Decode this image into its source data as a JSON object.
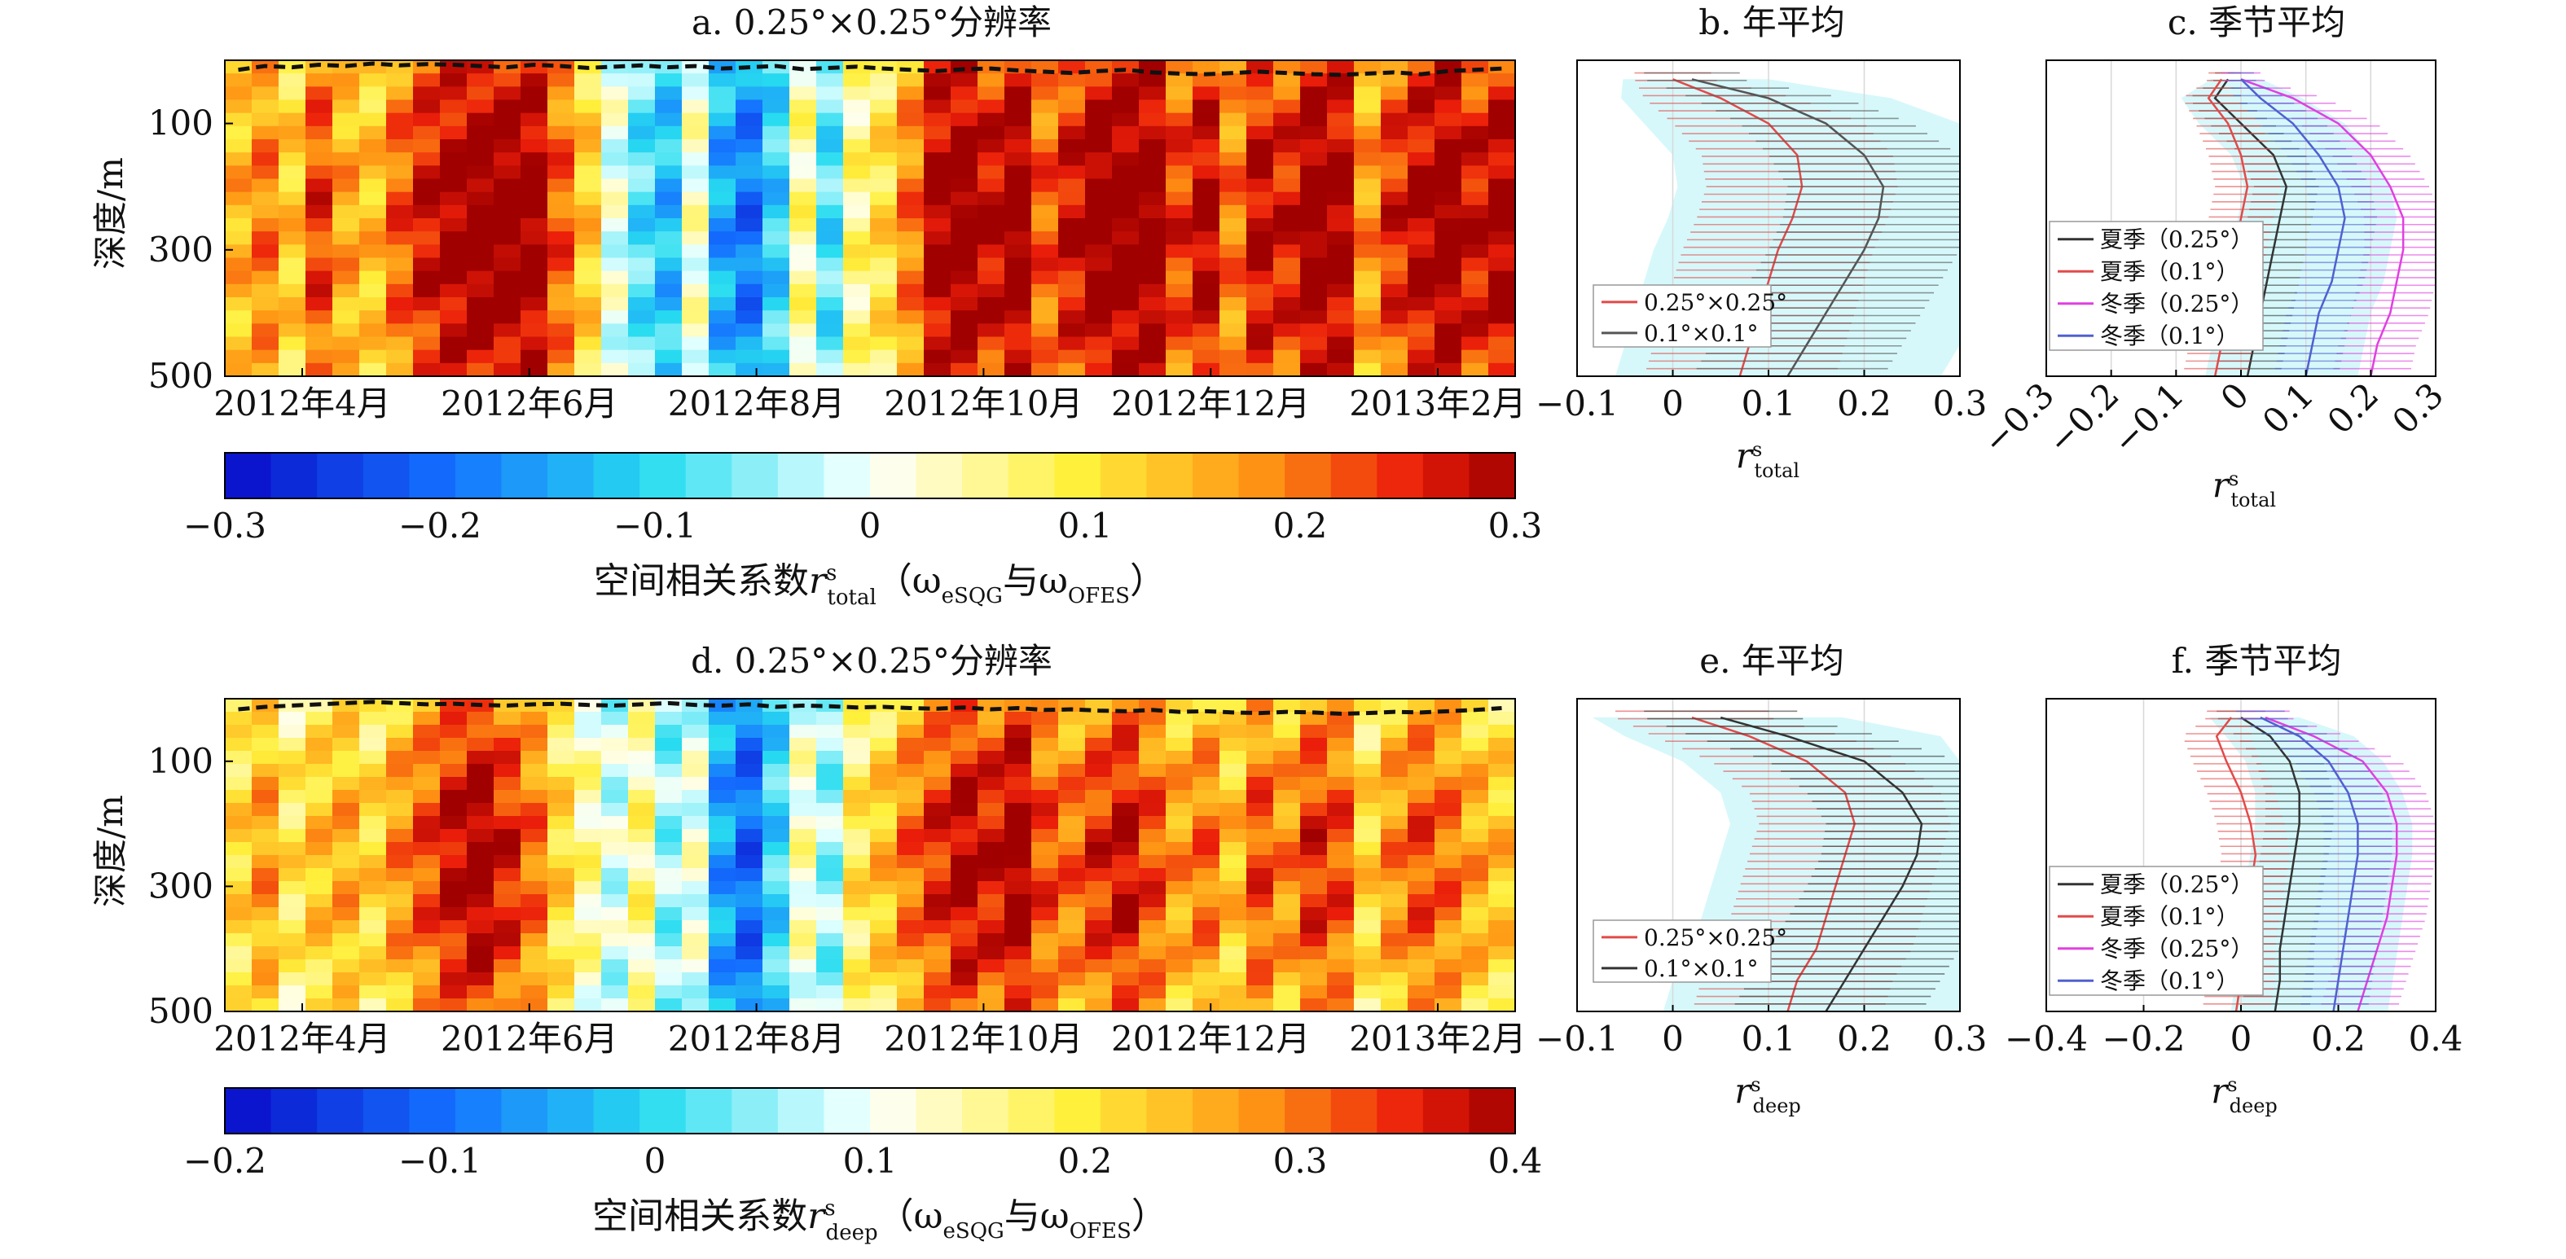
{
  "figure": {
    "top": {
      "heatmap_title": "a. 0.25°×0.25°分辨率",
      "annual_title": "b. 年平均",
      "seasonal_title": "c. 季节平均",
      "ylabel": "深度/m",
      "colorbar_label_prefix": "空间相关系数",
      "colorbar_label_var": "r",
      "colorbar_label_sup": "s",
      "colorbar_label_sub": "total",
      "colorbar_label_paren": "（ω",
      "colorbar_label_esqg": "eSQG",
      "colorbar_label_and": "与ω",
      "colorbar_label_ofes": "OFES",
      "colorbar_label_close": "）",
      "xlabel_var": "r",
      "xlabel_sup": "s",
      "xlabel_sub": "total"
    },
    "bottom": {
      "heatmap_title": "d. 0.25°×0.25°分辨率",
      "annual_title": "e. 年平均",
      "seasonal_title": "f. 季节平均",
      "ylabel": "深度/m",
      "colorbar_label_prefix": "空间相关系数",
      "colorbar_label_var": "r",
      "colorbar_label_sup": "s",
      "colorbar_label_sub": "deep",
      "colorbar_label_paren": "（ω",
      "colorbar_label_esqg": "eSQG",
      "colorbar_label_and": "与ω",
      "colorbar_label_ofes": "OFES",
      "colorbar_label_close": "）",
      "xlabel_var": "r",
      "xlabel_sup": "s",
      "xlabel_sub": "deep"
    }
  },
  "chart_data": [
    {
      "id": "a",
      "type": "heatmap",
      "title": "a. 0.25°×0.25°分辨率",
      "ylabel": "深度/m",
      "x_ticks": [
        "2012年4月",
        "2012年6月",
        "2012年8月",
        "2012年10月",
        "2012年12月",
        "2013年2月"
      ],
      "y_ticks": [
        "100",
        "300",
        "500"
      ],
      "y_tick_depths": [
        100,
        300,
        500
      ],
      "ylim": [
        500,
        0
      ],
      "colorbar": {
        "min": -0.3,
        "max": 0.3,
        "ticks": [
          "-0.3",
          "-0.2",
          "-0.1",
          "0",
          "0.1",
          "0.2",
          "0.3"
        ],
        "tick_values": [
          -0.3,
          -0.2,
          -0.1,
          0,
          0.1,
          0.2,
          0.3
        ]
      },
      "column_values": [
        0.14,
        0.18,
        0.12,
        0.22,
        0.15,
        0.13,
        0.2,
        0.25,
        0.28,
        0.3,
        0.3,
        0.29,
        0.2,
        0.12,
        0.0,
        -0.08,
        -0.12,
        0.02,
        -0.14,
        -0.18,
        -0.1,
        0.05,
        -0.08,
        0.06,
        0.1,
        0.18,
        0.28,
        0.3,
        0.26,
        0.3,
        0.2,
        0.25,
        0.3,
        0.3,
        0.3,
        0.22,
        0.27,
        0.18,
        0.26,
        0.24,
        0.3,
        0.28,
        0.16,
        0.23,
        0.27,
        0.3,
        0.25,
        0.28
      ],
      "mixed_layer_depth": [
        28,
        22,
        24,
        20,
        22,
        18,
        21,
        19,
        20,
        22,
        24,
        20,
        22,
        25,
        23,
        21,
        24,
        22,
        26,
        24,
        22,
        27,
        25,
        23,
        26,
        28,
        30,
        27,
        26,
        29,
        31,
        33,
        30,
        28,
        32,
        34,
        35,
        33,
        31,
        33,
        35,
        36,
        34,
        32,
        35,
        30,
        28,
        26
      ]
    },
    {
      "id": "b",
      "type": "line",
      "title": "b. 年平均",
      "xlim": [
        -0.1,
        0.3
      ],
      "x_ticks": [
        "−0.1",
        "0",
        "0.1",
        "0.2",
        "0.3"
      ],
      "x_tick_values": [
        -0.1,
        0,
        0.1,
        0.2,
        0.3
      ],
      "ylim": [
        500,
        0
      ],
      "depths": [
        30,
        60,
        100,
        150,
        200,
        250,
        300,
        350,
        400,
        450,
        500
      ],
      "series": [
        {
          "name": "0.25°×0.25°",
          "color": "#e24a4a",
          "values": [
            0.0,
            0.05,
            0.1,
            0.13,
            0.135,
            0.125,
            0.11,
            0.1,
            0.09,
            0.08,
            0.07
          ],
          "spread": [
            0.04,
            0.08,
            0.1,
            0.1,
            0.1,
            0.1,
            0.1,
            0.1,
            0.1,
            0.1,
            0.1
          ]
        },
        {
          "name": "0.1°×0.1°",
          "color": "#555555",
          "values": [
            0.02,
            0.1,
            0.16,
            0.2,
            0.22,
            0.215,
            0.2,
            0.18,
            0.16,
            0.14,
            0.12
          ],
          "spread": [
            0.05,
            0.08,
            0.09,
            0.1,
            0.1,
            0.1,
            0.1,
            0.1,
            0.1,
            0.1,
            0.1
          ]
        }
      ]
    },
    {
      "id": "c",
      "type": "line",
      "title": "c. 季节平均",
      "xlim": [
        -0.3,
        0.3
      ],
      "x_ticks": [
        "−0.3",
        "−0.2",
        "−0.1",
        "0",
        "0.1",
        "0.2",
        "0.3"
      ],
      "x_tick_values": [
        -0.3,
        -0.2,
        -0.1,
        0,
        0.1,
        0.2,
        0.3
      ],
      "ylim": [
        500,
        0
      ],
      "depths": [
        30,
        60,
        100,
        150,
        200,
        250,
        300,
        350,
        400,
        450,
        500
      ],
      "series": [
        {
          "name": "夏季（0.25°）",
          "color": "#333333",
          "values": [
            -0.02,
            -0.04,
            0.0,
            0.05,
            0.07,
            0.06,
            0.05,
            0.04,
            0.03,
            0.02,
            0.01
          ],
          "spread": [
            0.02,
            0.04,
            0.05,
            0.05,
            0.05,
            0.05,
            0.05,
            0.05,
            0.05,
            0.05,
            0.05
          ]
        },
        {
          "name": "夏季（0.1°）",
          "color": "#e24a4a",
          "values": [
            -0.03,
            -0.05,
            -0.02,
            0.0,
            0.01,
            0.0,
            -0.01,
            -0.02,
            -0.03,
            -0.03,
            -0.04
          ],
          "spread": [
            0.02,
            0.04,
            0.05,
            0.05,
            0.05,
            0.05,
            0.05,
            0.05,
            0.05,
            0.05,
            0.05
          ]
        },
        {
          "name": "冬季（0.25°）",
          "color": "#e040e0",
          "values": [
            0.0,
            0.08,
            0.15,
            0.2,
            0.23,
            0.25,
            0.25,
            0.24,
            0.23,
            0.21,
            0.2
          ],
          "spread": [
            0.03,
            0.05,
            0.06,
            0.06,
            0.06,
            0.06,
            0.06,
            0.06,
            0.06,
            0.06,
            0.06
          ]
        },
        {
          "name": "冬季（0.1°）",
          "color": "#5060d0",
          "values": [
            0.0,
            0.03,
            0.08,
            0.12,
            0.15,
            0.16,
            0.15,
            0.14,
            0.12,
            0.11,
            0.1
          ],
          "spread": [
            0.02,
            0.04,
            0.05,
            0.05,
            0.05,
            0.05,
            0.05,
            0.05,
            0.05,
            0.05,
            0.05
          ]
        }
      ]
    },
    {
      "id": "d",
      "type": "heatmap",
      "title": "d. 0.25°×0.25°分辨率",
      "ylabel": "深度/m",
      "x_ticks": [
        "2012年4月",
        "2012年6月",
        "2012年8月",
        "2012年10月",
        "2012年12月",
        "2013年2月"
      ],
      "y_ticks": [
        "100",
        "300",
        "500"
      ],
      "y_tick_depths": [
        100,
        300,
        500
      ],
      "ylim": [
        500,
        0
      ],
      "colorbar": {
        "min": -0.2,
        "max": 0.4,
        "ticks": [
          "−0.2",
          "−0.1",
          "0",
          "0.1",
          "0.2",
          "0.3",
          "0.4"
        ],
        "tick_values": [
          -0.2,
          -0.1,
          0,
          0.1,
          0.2,
          0.3,
          0.4
        ]
      },
      "column_values": [
        0.2,
        0.25,
        0.18,
        0.22,
        0.24,
        0.2,
        0.26,
        0.3,
        0.35,
        0.38,
        0.33,
        0.28,
        0.2,
        0.14,
        0.08,
        0.15,
        0.05,
        0.1,
        -0.05,
        -0.1,
        0.0,
        0.12,
        0.05,
        0.18,
        0.22,
        0.28,
        0.32,
        0.36,
        0.34,
        0.38,
        0.3,
        0.28,
        0.32,
        0.35,
        0.3,
        0.25,
        0.28,
        0.22,
        0.3,
        0.26,
        0.32,
        0.3,
        0.2,
        0.26,
        0.3,
        0.28,
        0.24,
        0.22
      ],
      "mixed_layer_depth": [
        30,
        26,
        24,
        22,
        20,
        18,
        20,
        22,
        21,
        23,
        24,
        22,
        21,
        23,
        24,
        22,
        20,
        23,
        24,
        22,
        26,
        24,
        25,
        27,
        26,
        28,
        29,
        27,
        30,
        28,
        31,
        30,
        32,
        33,
        31,
        34,
        33,
        35,
        36,
        34,
        35,
        37,
        36,
        34,
        35,
        33,
        31,
        28
      ]
    },
    {
      "id": "e",
      "type": "line",
      "title": "e. 年平均",
      "xlim": [
        -0.1,
        0.3
      ],
      "x_ticks": [
        "−0.1",
        "0",
        "0.1",
        "0.2",
        "0.3"
      ],
      "x_tick_values": [
        -0.1,
        0,
        0.1,
        0.2,
        0.3
      ],
      "ylim": [
        500,
        0
      ],
      "depths": [
        30,
        60,
        100,
        150,
        200,
        250,
        300,
        350,
        400,
        450,
        500
      ],
      "series": [
        {
          "name": "0.25°×0.25°",
          "color": "#e24a4a",
          "values": [
            0.02,
            0.08,
            0.14,
            0.18,
            0.19,
            0.18,
            0.17,
            0.16,
            0.15,
            0.13,
            0.12
          ],
          "spread": [
            0.08,
            0.1,
            0.1,
            0.1,
            0.1,
            0.1,
            0.1,
            0.1,
            0.1,
            0.1,
            0.1
          ]
        },
        {
          "name": "0.1°×0.1°",
          "color": "#333333",
          "values": [
            0.05,
            0.12,
            0.2,
            0.24,
            0.26,
            0.255,
            0.24,
            0.22,
            0.2,
            0.18,
            0.16
          ],
          "spread": [
            0.08,
            0.1,
            0.1,
            0.1,
            0.1,
            0.1,
            0.1,
            0.1,
            0.1,
            0.1,
            0.1
          ]
        }
      ]
    },
    {
      "id": "f",
      "type": "line",
      "title": "f. 季节平均",
      "xlim": [
        -0.4,
        0.4
      ],
      "x_ticks": [
        "−0.4",
        "−0.2",
        "0",
        "0.2",
        "0.4"
      ],
      "x_tick_values": [
        -0.4,
        -0.2,
        0,
        0.2,
        0.4
      ],
      "ylim": [
        500,
        0
      ],
      "depths": [
        30,
        60,
        100,
        150,
        200,
        250,
        300,
        350,
        400,
        450,
        500
      ],
      "series": [
        {
          "name": "夏季（0.25°）",
          "color": "#333333",
          "values": [
            0.0,
            0.06,
            0.1,
            0.12,
            0.12,
            0.11,
            0.1,
            0.09,
            0.08,
            0.08,
            0.07
          ],
          "spread": [
            0.05,
            0.07,
            0.07,
            0.07,
            0.07,
            0.07,
            0.07,
            0.07,
            0.07,
            0.07,
            0.07
          ]
        },
        {
          "name": "夏季（0.1°）",
          "color": "#e24a4a",
          "values": [
            -0.02,
            -0.05,
            -0.03,
            0.0,
            0.02,
            0.03,
            0.02,
            0.01,
            0.0,
            0.0,
            -0.01
          ],
          "spread": [
            0.05,
            0.07,
            0.07,
            0.07,
            0.07,
            0.07,
            0.07,
            0.07,
            0.07,
            0.07,
            0.07
          ]
        },
        {
          "name": "冬季（0.25°）",
          "color": "#e040e0",
          "values": [
            0.05,
            0.15,
            0.25,
            0.3,
            0.32,
            0.32,
            0.31,
            0.3,
            0.28,
            0.26,
            0.24
          ],
          "spread": [
            0.05,
            0.07,
            0.08,
            0.08,
            0.08,
            0.08,
            0.08,
            0.08,
            0.08,
            0.08,
            0.08
          ]
        },
        {
          "name": "冬季（0.1°）",
          "color": "#5060d0",
          "values": [
            0.04,
            0.12,
            0.18,
            0.22,
            0.24,
            0.24,
            0.23,
            0.22,
            0.21,
            0.2,
            0.19
          ],
          "spread": [
            0.05,
            0.07,
            0.07,
            0.07,
            0.07,
            0.07,
            0.07,
            0.07,
            0.07,
            0.07,
            0.07
          ]
        }
      ]
    }
  ]
}
